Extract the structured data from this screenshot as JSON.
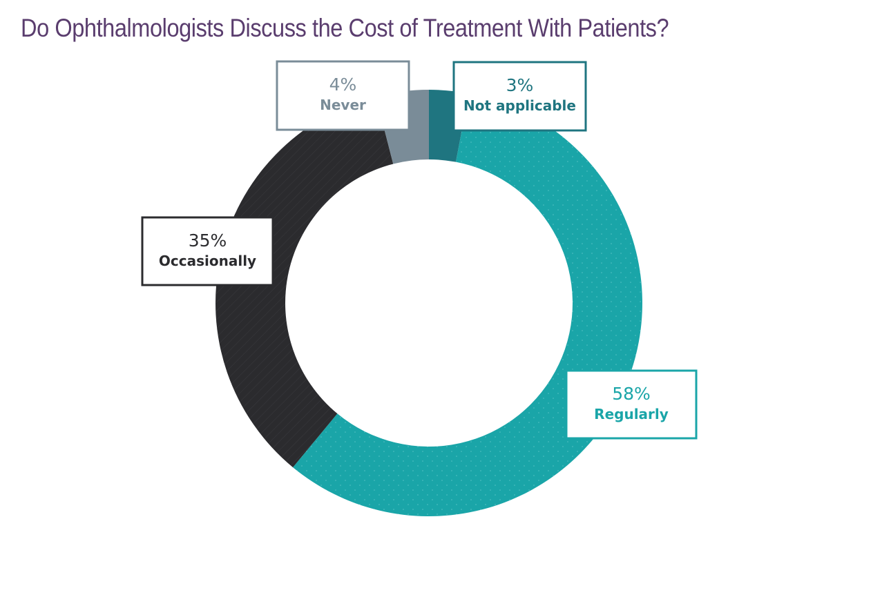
{
  "chart_data": {
    "type": "pie",
    "title": "Do Ophthalmologists Discuss the Cost of Treatment With Patients?",
    "donut": true,
    "slices": [
      {
        "label": "Not applicable",
        "value": 3,
        "value_label": "3%",
        "color": "#1f7580"
      },
      {
        "label": "Regularly",
        "value": 58,
        "value_label": "58%",
        "color": "#1aa5a8"
      },
      {
        "label": "Occasionally",
        "value": 35,
        "value_label": "35%",
        "color": "#2b2b2e"
      },
      {
        "label": "Never",
        "value": 4,
        "value_label": "4%",
        "color": "#7a8c98"
      }
    ]
  }
}
